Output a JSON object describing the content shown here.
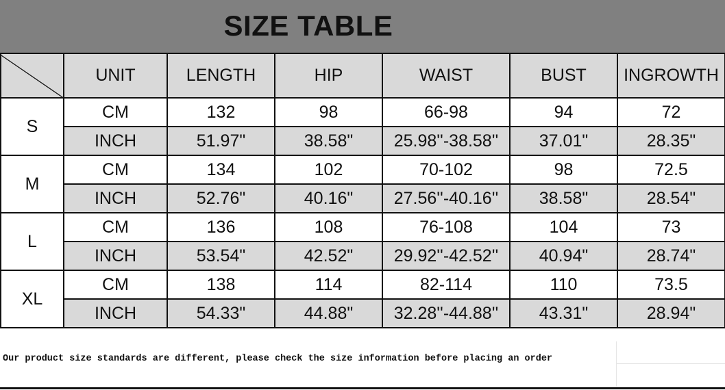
{
  "title": "SIZE TABLE",
  "headers": [
    "UNIT",
    "LENGTH",
    "HIP",
    "WAIST",
    "BUST",
    "INGROWTH"
  ],
  "sizes": [
    {
      "size": "S",
      "cm": [
        "CM",
        "132",
        "98",
        "66-98",
        "94",
        "72"
      ],
      "inch": [
        "INCH",
        "51.97\"",
        "38.58\"",
        "25.98''-38.58''",
        "37.01\"",
        "28.35\""
      ]
    },
    {
      "size": "M",
      "cm": [
        "CM",
        "134",
        "102",
        "70-102",
        "98",
        "72.5"
      ],
      "inch": [
        "INCH",
        "52.76\"",
        "40.16\"",
        "27.56''-40.16''",
        "38.58\"",
        "28.54\""
      ]
    },
    {
      "size": "L",
      "cm": [
        "CM",
        "136",
        "108",
        "76-108",
        "104",
        "73"
      ],
      "inch": [
        "INCH",
        "53.54\"",
        "42.52\"",
        "29.92''-42.52''",
        "40.94\"",
        "28.74\""
      ]
    },
    {
      "size": "XL",
      "cm": [
        "CM",
        "138",
        "114",
        "82-114",
        "110",
        "73.5"
      ],
      "inch": [
        "INCH",
        "54.33\"",
        "44.88\"",
        "32.28''-44.88''",
        "43.31\"",
        "28.94\""
      ]
    }
  ],
  "note": "Our product size standards are different, please check the size information before placing an order",
  "colors": {
    "banner": "#808080",
    "shaded_cell": "#d9d9d9"
  }
}
